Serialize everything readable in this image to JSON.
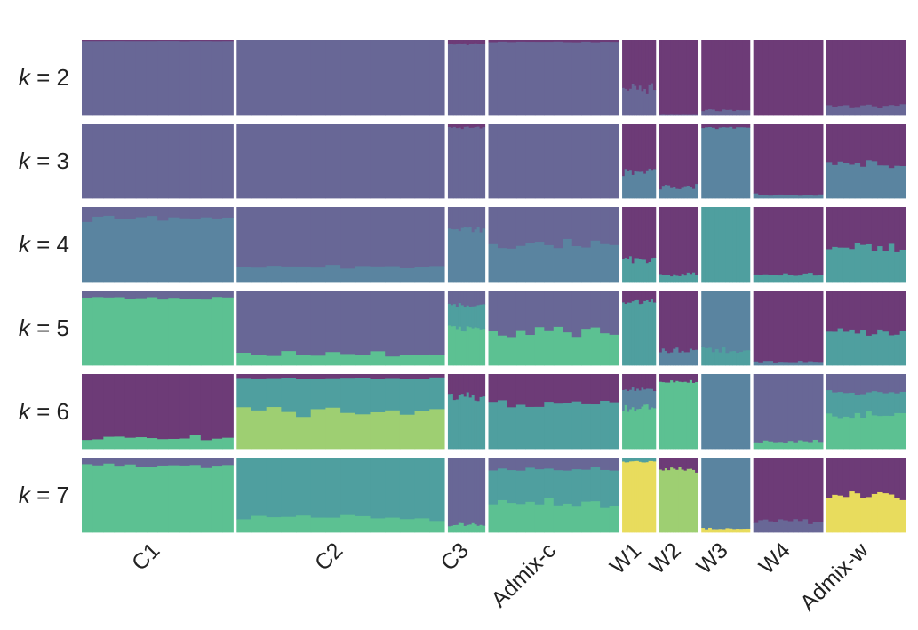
{
  "chart_data": {
    "type": "admixture-bar",
    "title": "",
    "row_label_prefix": "k",
    "row_label_sep": " = ",
    "k_values": [
      2,
      3,
      4,
      5,
      6,
      7
    ],
    "populations": [
      "C1",
      "C2",
      "C3",
      "Admix-c",
      "W1",
      "W2",
      "W3",
      "W4",
      "Admix-w"
    ],
    "population_relative_widths": [
      172,
      236,
      42,
      148,
      38,
      44,
      55,
      79,
      90
    ],
    "colors": {
      "purple": "#6d3b77",
      "slate": "#686796",
      "steel": "#5a84a0",
      "teal": "#4f9f9f",
      "green": "#5cc192",
      "lime": "#9ecf72",
      "yellow": "#e8dc5d"
    },
    "rows": [
      {
        "k": 2,
        "ancestry_proportions_bottom_to_top": [
          {
            "population": "C1",
            "components": [
              {
                "c": "slate",
                "v": 0.99
              },
              {
                "c": "purple",
                "v": 0.01
              }
            ]
          },
          {
            "population": "C2",
            "components": [
              {
                "c": "slate",
                "v": 1.0
              }
            ]
          },
          {
            "population": "C3",
            "components": [
              {
                "c": "slate",
                "v": 0.95
              },
              {
                "c": "purple",
                "v": 0.05
              }
            ]
          },
          {
            "population": "Admix-c",
            "components": [
              {
                "c": "slate",
                "v": 0.98
              },
              {
                "c": "purple",
                "v": 0.02
              }
            ]
          },
          {
            "population": "W1",
            "components": [
              {
                "c": "slate",
                "v": 0.35
              },
              {
                "c": "purple",
                "v": 0.65
              }
            ]
          },
          {
            "population": "W2",
            "components": [
              {
                "c": "slate",
                "v": 0.01
              },
              {
                "c": "purple",
                "v": 0.99
              }
            ]
          },
          {
            "population": "W3",
            "components": [
              {
                "c": "slate",
                "v": 0.06
              },
              {
                "c": "purple",
                "v": 0.94
              }
            ]
          },
          {
            "population": "W4",
            "components": [
              {
                "c": "purple",
                "v": 1.0
              }
            ]
          },
          {
            "population": "Admix-w",
            "components": [
              {
                "c": "slate",
                "v": 0.12
              },
              {
                "c": "purple",
                "v": 0.88
              }
            ]
          }
        ]
      },
      {
        "k": 3,
        "ancestry_proportions_bottom_to_top": [
          {
            "population": "C1",
            "components": [
              {
                "c": "slate",
                "v": 1.0
              }
            ]
          },
          {
            "population": "C2",
            "components": [
              {
                "c": "slate",
                "v": 1.0
              }
            ]
          },
          {
            "population": "C3",
            "components": [
              {
                "c": "slate",
                "v": 0.95
              },
              {
                "c": "purple",
                "v": 0.05
              }
            ]
          },
          {
            "population": "Admix-c",
            "components": [
              {
                "c": "slate",
                "v": 1.0
              }
            ]
          },
          {
            "population": "W1",
            "components": [
              {
                "c": "steel",
                "v": 0.35
              },
              {
                "c": "purple",
                "v": 0.65
              }
            ]
          },
          {
            "population": "W2",
            "components": [
              {
                "c": "steel",
                "v": 0.15
              },
              {
                "c": "purple",
                "v": 0.85
              }
            ]
          },
          {
            "population": "W3",
            "components": [
              {
                "c": "steel",
                "v": 0.95
              },
              {
                "c": "purple",
                "v": 0.05
              }
            ]
          },
          {
            "population": "W4",
            "components": [
              {
                "c": "steel",
                "v": 0.05
              },
              {
                "c": "purple",
                "v": 0.95
              }
            ]
          },
          {
            "population": "Admix-w",
            "components": [
              {
                "c": "steel",
                "v": 0.45
              },
              {
                "c": "purple",
                "v": 0.55
              }
            ]
          }
        ]
      },
      {
        "k": 4,
        "ancestry_proportions_bottom_to_top": [
          {
            "population": "C1",
            "components": [
              {
                "c": "steel",
                "v": 0.85
              },
              {
                "c": "slate",
                "v": 0.15
              }
            ]
          },
          {
            "population": "C2",
            "components": [
              {
                "c": "steel",
                "v": 0.2
              },
              {
                "c": "slate",
                "v": 0.8
              }
            ]
          },
          {
            "population": "C3",
            "components": [
              {
                "c": "steel",
                "v": 0.7
              },
              {
                "c": "slate",
                "v": 0.3
              }
            ]
          },
          {
            "population": "Admix-c",
            "components": [
              {
                "c": "steel",
                "v": 0.5
              },
              {
                "c": "slate",
                "v": 0.5
              }
            ]
          },
          {
            "population": "W1",
            "components": [
              {
                "c": "teal",
                "v": 0.3
              },
              {
                "c": "purple",
                "v": 0.7
              }
            ]
          },
          {
            "population": "W2",
            "components": [
              {
                "c": "teal",
                "v": 0.1
              },
              {
                "c": "purple",
                "v": 0.9
              }
            ]
          },
          {
            "population": "W3",
            "components": [
              {
                "c": "teal",
                "v": 1.0
              }
            ]
          },
          {
            "population": "W4",
            "components": [
              {
                "c": "teal",
                "v": 0.1
              },
              {
                "c": "purple",
                "v": 0.9
              }
            ]
          },
          {
            "population": "Admix-w",
            "components": [
              {
                "c": "teal",
                "v": 0.45
              },
              {
                "c": "purple",
                "v": 0.55
              }
            ]
          }
        ]
      },
      {
        "k": 5,
        "ancestry_proportions_bottom_to_top": [
          {
            "population": "C1",
            "components": [
              {
                "c": "green",
                "v": 0.9
              },
              {
                "c": "slate",
                "v": 0.1
              }
            ]
          },
          {
            "population": "C2",
            "components": [
              {
                "c": "green",
                "v": 0.15
              },
              {
                "c": "slate",
                "v": 0.85
              }
            ]
          },
          {
            "population": "C3",
            "components": [
              {
                "c": "green",
                "v": 0.5
              },
              {
                "c": "teal",
                "v": 0.3
              },
              {
                "c": "slate",
                "v": 0.2
              }
            ]
          },
          {
            "population": "Admix-c",
            "components": [
              {
                "c": "green",
                "v": 0.45
              },
              {
                "c": "slate",
                "v": 0.55
              }
            ]
          },
          {
            "population": "W1",
            "components": [
              {
                "c": "teal",
                "v": 0.85
              },
              {
                "c": "purple",
                "v": 0.15
              }
            ]
          },
          {
            "population": "W2",
            "components": [
              {
                "c": "steel",
                "v": 0.2
              },
              {
                "c": "purple",
                "v": 0.8
              }
            ]
          },
          {
            "population": "W3",
            "components": [
              {
                "c": "teal",
                "v": 0.2
              },
              {
                "c": "steel",
                "v": 0.8
              }
            ]
          },
          {
            "population": "W4",
            "components": [
              {
                "c": "steel",
                "v": 0.05
              },
              {
                "c": "purple",
                "v": 0.95
              }
            ]
          },
          {
            "population": "Admix-w",
            "components": [
              {
                "c": "teal",
                "v": 0.45
              },
              {
                "c": "purple",
                "v": 0.55
              }
            ]
          }
        ]
      },
      {
        "k": 6,
        "ancestry_proportions_bottom_to_top": [
          {
            "population": "C1",
            "components": [
              {
                "c": "green",
                "v": 0.15
              },
              {
                "c": "purple",
                "v": 0.85
              }
            ]
          },
          {
            "population": "C2",
            "components": [
              {
                "c": "lime",
                "v": 0.5
              },
              {
                "c": "teal",
                "v": 0.45
              },
              {
                "c": "purple",
                "v": 0.05
              }
            ]
          },
          {
            "population": "C3",
            "components": [
              {
                "c": "teal",
                "v": 0.7
              },
              {
                "c": "purple",
                "v": 0.3
              }
            ]
          },
          {
            "population": "Admix-c",
            "components": [
              {
                "c": "teal",
                "v": 0.6
              },
              {
                "c": "purple",
                "v": 0.4
              }
            ]
          },
          {
            "population": "W1",
            "components": [
              {
                "c": "green",
                "v": 0.55
              },
              {
                "c": "steel",
                "v": 0.25
              },
              {
                "c": "purple",
                "v": 0.2
              }
            ]
          },
          {
            "population": "W2",
            "components": [
              {
                "c": "green",
                "v": 0.9
              },
              {
                "c": "purple",
                "v": 0.1
              }
            ]
          },
          {
            "population": "W3",
            "components": [
              {
                "c": "steel",
                "v": 1.0
              }
            ]
          },
          {
            "population": "W4",
            "components": [
              {
                "c": "green",
                "v": 0.1
              },
              {
                "c": "slate",
                "v": 0.9
              }
            ]
          },
          {
            "population": "Admix-w",
            "components": [
              {
                "c": "green",
                "v": 0.45
              },
              {
                "c": "teal",
                "v": 0.3
              },
              {
                "c": "slate",
                "v": 0.25
              }
            ]
          }
        ]
      },
      {
        "k": 7,
        "ancestry_proportions_bottom_to_top": [
          {
            "population": "C1",
            "components": [
              {
                "c": "green",
                "v": 0.9
              },
              {
                "c": "slate",
                "v": 0.1
              }
            ]
          },
          {
            "population": "C2",
            "components": [
              {
                "c": "green",
                "v": 0.2
              },
              {
                "c": "teal",
                "v": 0.8
              }
            ]
          },
          {
            "population": "C3",
            "components": [
              {
                "c": "green",
                "v": 0.1
              },
              {
                "c": "slate",
                "v": 0.9
              }
            ]
          },
          {
            "population": "Admix-c",
            "components": [
              {
                "c": "green",
                "v": 0.4
              },
              {
                "c": "teal",
                "v": 0.45
              },
              {
                "c": "slate",
                "v": 0.15
              }
            ]
          },
          {
            "population": "W1",
            "components": [
              {
                "c": "yellow",
                "v": 0.95
              },
              {
                "c": "teal",
                "v": 0.05
              }
            ]
          },
          {
            "population": "W2",
            "components": [
              {
                "c": "lime",
                "v": 0.85
              },
              {
                "c": "purple",
                "v": 0.15
              }
            ]
          },
          {
            "population": "W3",
            "components": [
              {
                "c": "yellow",
                "v": 0.05
              },
              {
                "c": "steel",
                "v": 0.95
              }
            ]
          },
          {
            "population": "W4",
            "components": [
              {
                "c": "slate",
                "v": 0.15
              },
              {
                "c": "purple",
                "v": 0.85
              }
            ]
          },
          {
            "population": "Admix-w",
            "components": [
              {
                "c": "yellow",
                "v": 0.5
              },
              {
                "c": "purple",
                "v": 0.5
              }
            ]
          }
        ]
      }
    ]
  }
}
